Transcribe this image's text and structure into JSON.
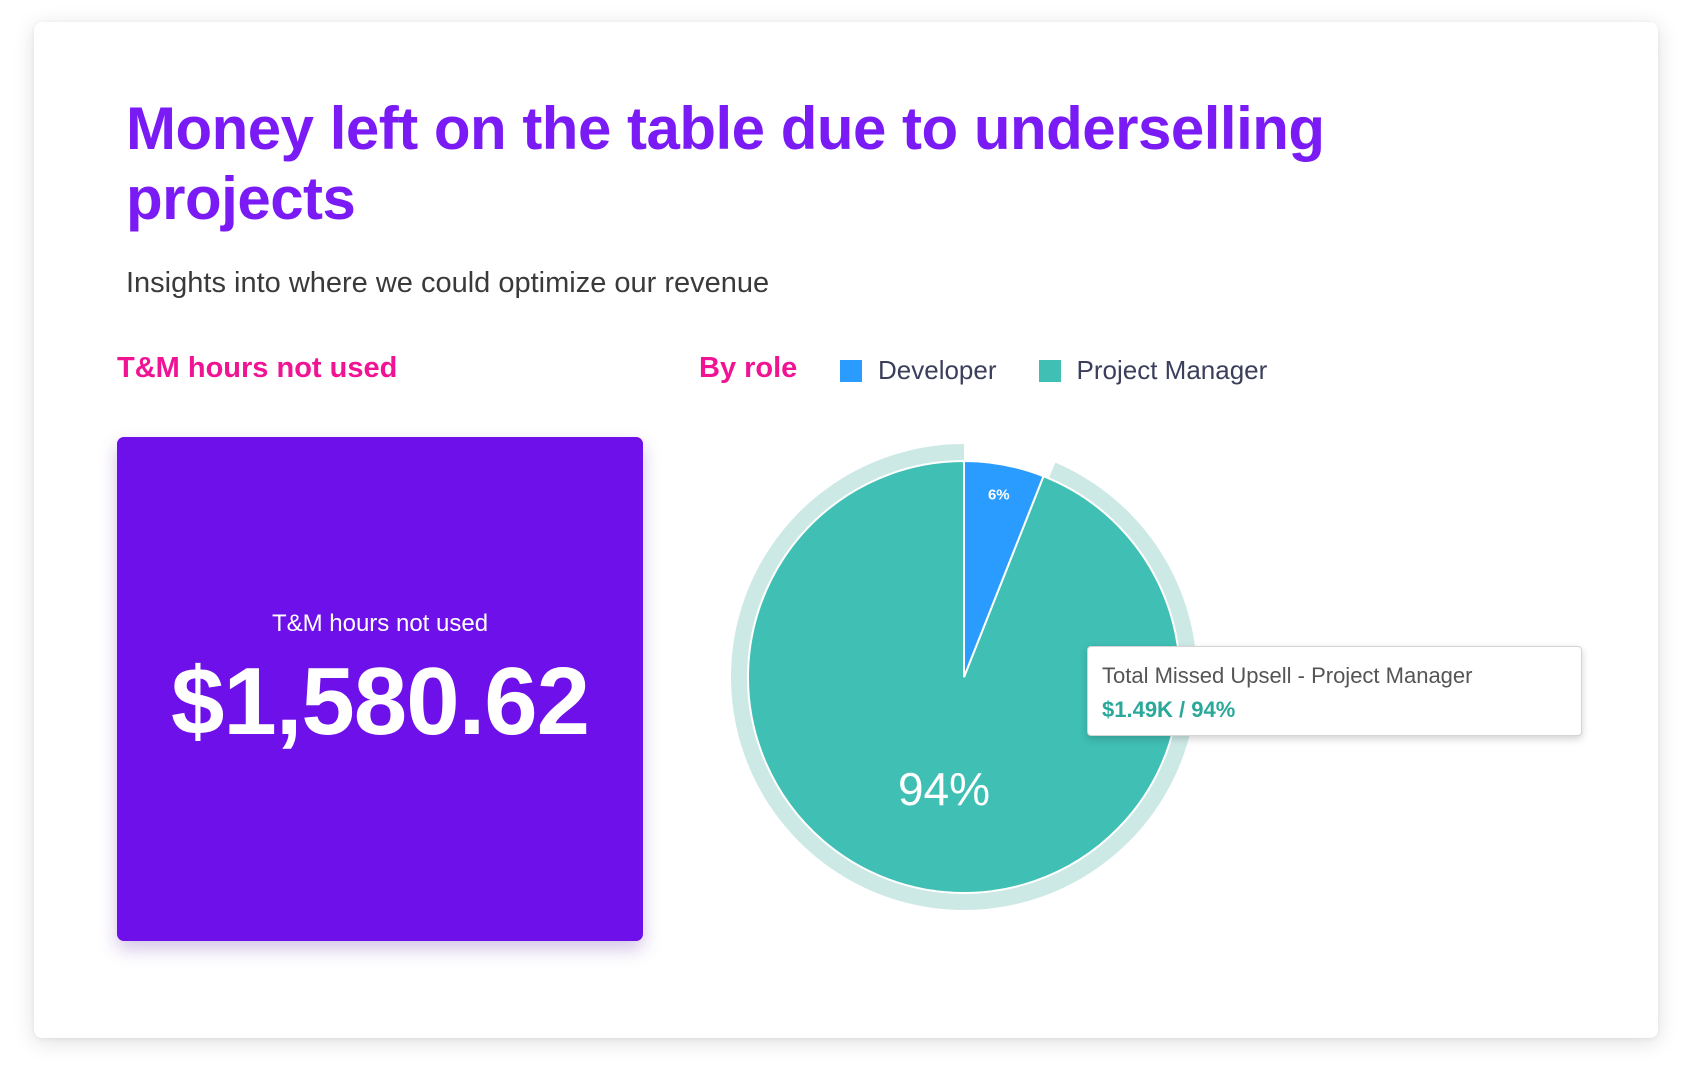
{
  "header": {
    "title": "Money left on the table due to underselling projects",
    "subtitle": "Insights into where we could optimize our revenue"
  },
  "metric": {
    "section_label": "T&M hours not used",
    "caption": "T&M hours not used",
    "value": "$1,580.62",
    "color": "#6e10ea"
  },
  "colors": {
    "title": "#7a1af5",
    "section_label": "#f01494"
  },
  "chart_data": {
    "type": "pie",
    "title": "By role",
    "series": [
      {
        "name": "Developer",
        "percent": 6,
        "label": "6%",
        "color": "#2b9cff"
      },
      {
        "name": "Project Manager",
        "percent": 94,
        "label": "94%",
        "color": "#40bfb4",
        "highlight_color": "#cde9e6",
        "highlighted": true
      }
    ],
    "legend": "top",
    "tooltip": {
      "title": "Total Missed Upsell  -  Project Manager",
      "value": "$1.49K / 94%"
    }
  }
}
